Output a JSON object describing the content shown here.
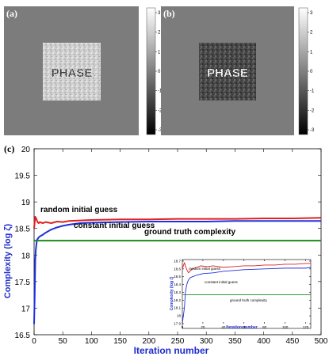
{
  "panels": {
    "a": {
      "label": "(a)",
      "word": "PHASE",
      "colorbar_ticks": [
        "3",
        "2",
        "1",
        "0",
        "-1",
        "-2",
        "-3"
      ]
    },
    "b": {
      "label": "(b)",
      "word": "PHASE",
      "colorbar_ticks": [
        "3",
        "2",
        "1",
        "0",
        "-1",
        "-2",
        "-3"
      ]
    },
    "c": {
      "label": "(c)"
    }
  },
  "colors": {
    "random": "#e02020",
    "constant": "#2030e0",
    "ground_truth": "#1a8a1a",
    "axis_label": "#1f2ccc"
  },
  "chart_data": [
    {
      "type": "line",
      "xlabel": "Iteration number",
      "ylabel": "Complexity (log ζ)",
      "xlim": [
        0,
        500
      ],
      "ylim": [
        16.5,
        20
      ],
      "xticks": [
        0,
        50,
        100,
        150,
        200,
        250,
        300,
        350,
        400,
        450,
        500
      ],
      "yticks": [
        16.5,
        17,
        17.5,
        18,
        18.5,
        19,
        19.5,
        20
      ],
      "ytick_labels": [
        "16.5",
        "17",
        "17.5",
        "18",
        "18.5",
        "19",
        "19.5",
        "20"
      ],
      "annotations": [
        "random initial guess",
        "constant initial guess",
        "ground truth complexity"
      ],
      "series": [
        {
          "name": "random initial guess",
          "x": [
            0,
            2,
            4,
            6,
            8,
            10,
            15,
            20,
            30,
            40,
            50,
            60,
            80,
            100,
            150,
            200,
            250,
            300,
            350,
            400,
            450,
            500
          ],
          "values": [
            18.5,
            18.72,
            18.68,
            18.62,
            18.6,
            18.62,
            18.6,
            18.62,
            18.6,
            18.63,
            18.62,
            18.64,
            18.65,
            18.66,
            18.67,
            18.67,
            18.68,
            18.68,
            18.68,
            18.69,
            18.69,
            18.7
          ]
        },
        {
          "name": "constant initial guess",
          "x": [
            0,
            1,
            2,
            3,
            4,
            5,
            6,
            8,
            10,
            15,
            20,
            30,
            40,
            50,
            60,
            80,
            100,
            150,
            200,
            250,
            300,
            350,
            400,
            450,
            500
          ],
          "values": [
            16.7,
            17.2,
            17.9,
            18.1,
            18.2,
            18.28,
            18.3,
            18.33,
            18.35,
            18.38,
            18.42,
            18.48,
            18.52,
            18.55,
            18.57,
            18.6,
            18.61,
            18.62,
            18.63,
            18.63,
            18.63,
            18.64,
            18.64,
            18.64,
            18.64
          ]
        },
        {
          "name": "ground truth complexity",
          "x": [
            0,
            500
          ],
          "values": [
            18.27,
            18.27
          ]
        }
      ]
    },
    {
      "type": "line",
      "xlabel": "Iteration number",
      "ylabel": "Complexity (log ζ)",
      "xlim": [
        0,
        125
      ],
      "ylim": [
        17.9,
        18.72
      ],
      "xticks": [
        0,
        20,
        40,
        60,
        80,
        100,
        120
      ],
      "yticks": [
        17.9,
        18,
        18.1,
        18.2,
        18.3,
        18.4,
        18.5,
        18.6,
        18.7
      ],
      "ytick_labels": [
        "17.9",
        "18",
        "18.1",
        "18.2",
        "18.3",
        "18.4",
        "18.5",
        "18.6",
        "18.7"
      ],
      "annotations": [
        "random initial guess",
        "constant initial guess",
        "ground truth complexity"
      ],
      "series": [
        {
          "name": "random initial guess",
          "x": [
            0,
            2,
            4,
            6,
            8,
            10,
            14,
            18,
            24,
            30,
            40,
            50,
            60,
            70,
            80,
            90,
            100,
            110,
            120,
            125
          ],
          "values": [
            18.6,
            18.68,
            18.6,
            18.55,
            18.58,
            18.6,
            18.62,
            18.64,
            18.63,
            18.64,
            18.62,
            18.63,
            18.64,
            18.64,
            18.65,
            18.65,
            18.66,
            18.66,
            18.67,
            18.67
          ]
        },
        {
          "name": "constant initial guess",
          "x": [
            0,
            2,
            3,
            4,
            5,
            6,
            8,
            10,
            14,
            20,
            30,
            40,
            50,
            60,
            80,
            100,
            120,
            125
          ],
          "values": [
            17.9,
            18.1,
            18.3,
            18.38,
            18.43,
            18.46,
            18.49,
            18.5,
            18.52,
            18.54,
            18.55,
            18.57,
            18.58,
            18.59,
            18.6,
            18.61,
            18.61,
            18.62
          ]
        },
        {
          "name": "ground truth complexity",
          "x": [
            0,
            125
          ],
          "values": [
            18.27,
            18.27
          ]
        }
      ]
    }
  ]
}
